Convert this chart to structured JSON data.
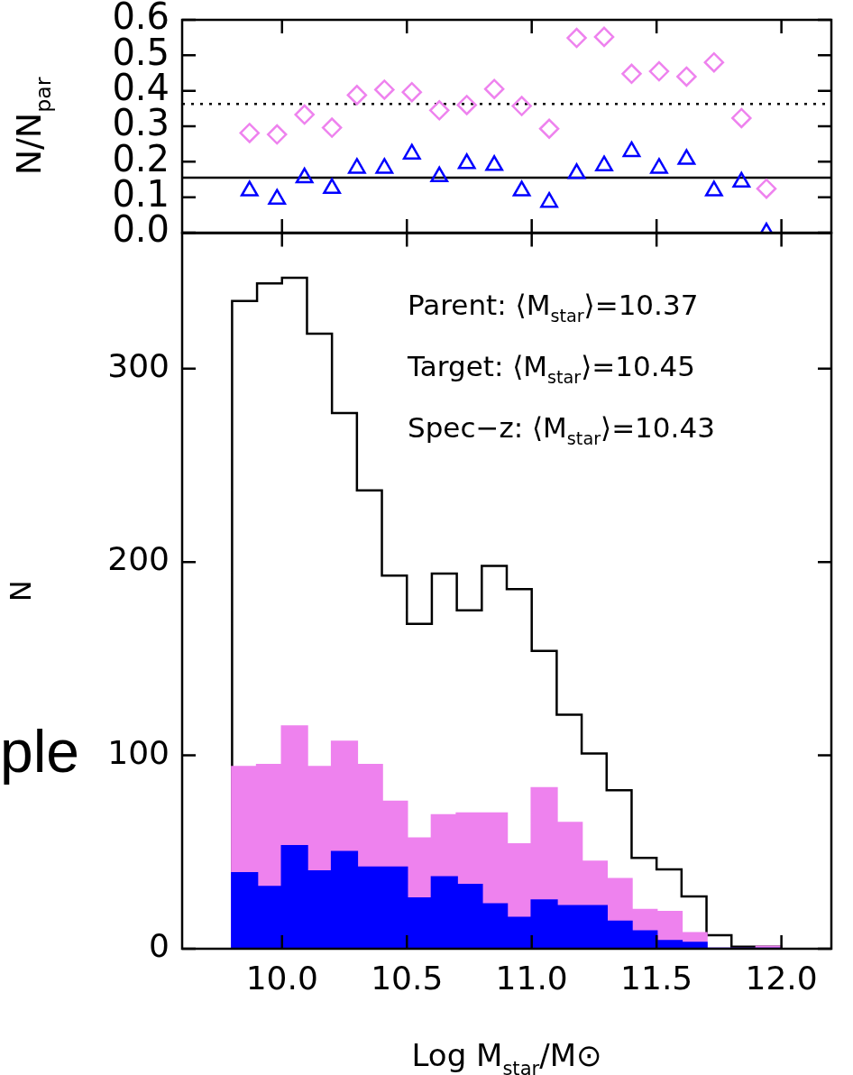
{
  "chart_data": [
    {
      "type": "scatter",
      "ylabel": "N/N$_{par}$",
      "xlim": [
        9.6,
        12.2
      ],
      "ylim": [
        0,
        0.6
      ],
      "xticks": [
        10,
        10.5,
        11,
        11.5,
        12
      ],
      "yticks": [
        {
          "value": 0,
          "label": "0.0"
        },
        0.1,
        0.2,
        0.3,
        0.4,
        0.5,
        0.6
      ],
      "tick_labels": "y",
      "x": [
        9.87,
        9.98,
        10.09,
        10.2,
        10.3,
        10.41,
        10.52,
        10.63,
        10.74,
        10.85,
        10.96,
        11.07,
        11.18,
        11.29,
        11.4,
        11.51,
        11.62,
        11.73,
        11.84,
        11.94
      ],
      "series": [
        {
          "color": "#ee82ee",
          "marker": "diamond",
          "values": [
            0.281,
            0.277,
            0.333,
            0.296,
            0.388,
            0.403,
            0.396,
            0.345,
            0.36,
            0.405,
            0.357,
            0.293,
            0.549,
            0.552,
            0.448,
            0.455,
            0.44,
            0.48,
            0.323,
            0.124
          ]
        },
        {
          "color": "#0000ff",
          "marker": "triangle",
          "values": [
            0.118,
            0.095,
            0.155,
            0.125,
            0.182,
            0.182,
            0.222,
            0.158,
            0.195,
            0.19,
            0.118,
            0.086,
            0.167,
            0.189,
            0.229,
            0.182,
            0.207,
            0.118,
            0.143,
            0.0
          ]
        }
      ],
      "ref_lines": [
        {
          "axis": "y",
          "value": 0.363,
          "line_style": "dotted",
          "color": "#000000"
        },
        {
          "axis": "y",
          "value": 0.155,
          "line_style": "solid",
          "color": "#000000"
        }
      ]
    },
    {
      "type": "histogram",
      "xlabel": "Log M$_{star}$/M⊙",
      "ylabel": "N",
      "xlim": [
        9.6,
        12.2
      ],
      "ylim": [
        0,
        370
      ],
      "xticks": [
        {
          "value": 10,
          "label": "10.0"
        },
        10.5,
        {
          "value": 11,
          "label": "11.0"
        },
        11.5,
        {
          "value": 12,
          "label": "12.0"
        }
      ],
      "yticks": [
        0,
        100,
        200,
        300
      ],
      "bins": [
        9.8,
        9.9,
        10.0,
        10.1,
        10.2,
        10.3,
        10.4,
        10.5,
        10.6,
        10.7,
        10.8,
        10.9,
        11.0,
        11.1,
        11.2,
        11.3,
        11.4,
        11.5,
        11.6,
        11.7,
        11.8,
        11.9,
        12.0
      ],
      "series": [
        {
          "color": "#000000",
          "values": [
            335,
            344,
            347,
            318,
            277,
            237,
            193,
            168,
            194,
            175,
            198,
            186,
            154,
            121,
            101,
            82,
            47,
            41,
            27,
            7,
            1,
            1
          ]
        },
        {
          "color": "#ee82ee",
          "values": [
            94,
            95,
            115,
            94,
            107,
            95,
            76,
            57,
            69,
            70,
            70,
            54,
            83,
            65,
            45,
            36,
            20,
            19,
            8,
            0,
            0,
            1
          ]
        },
        {
          "color": "#0000ff",
          "values": [
            39,
            32,
            53,
            40,
            50,
            42,
            42,
            26,
            37,
            33,
            23,
            16,
            25,
            22,
            22,
            14,
            9,
            4,
            3,
            0,
            0,
            0
          ]
        }
      ],
      "annotations": [
        "Parent: ⟨M$_{star}$⟩=10.37",
        "Target: ⟨M$_{star}$⟩=10.45",
        "Spec−z: ⟨M$_{star}$⟩=10.43",
        "ple"
      ]
    }
  ]
}
